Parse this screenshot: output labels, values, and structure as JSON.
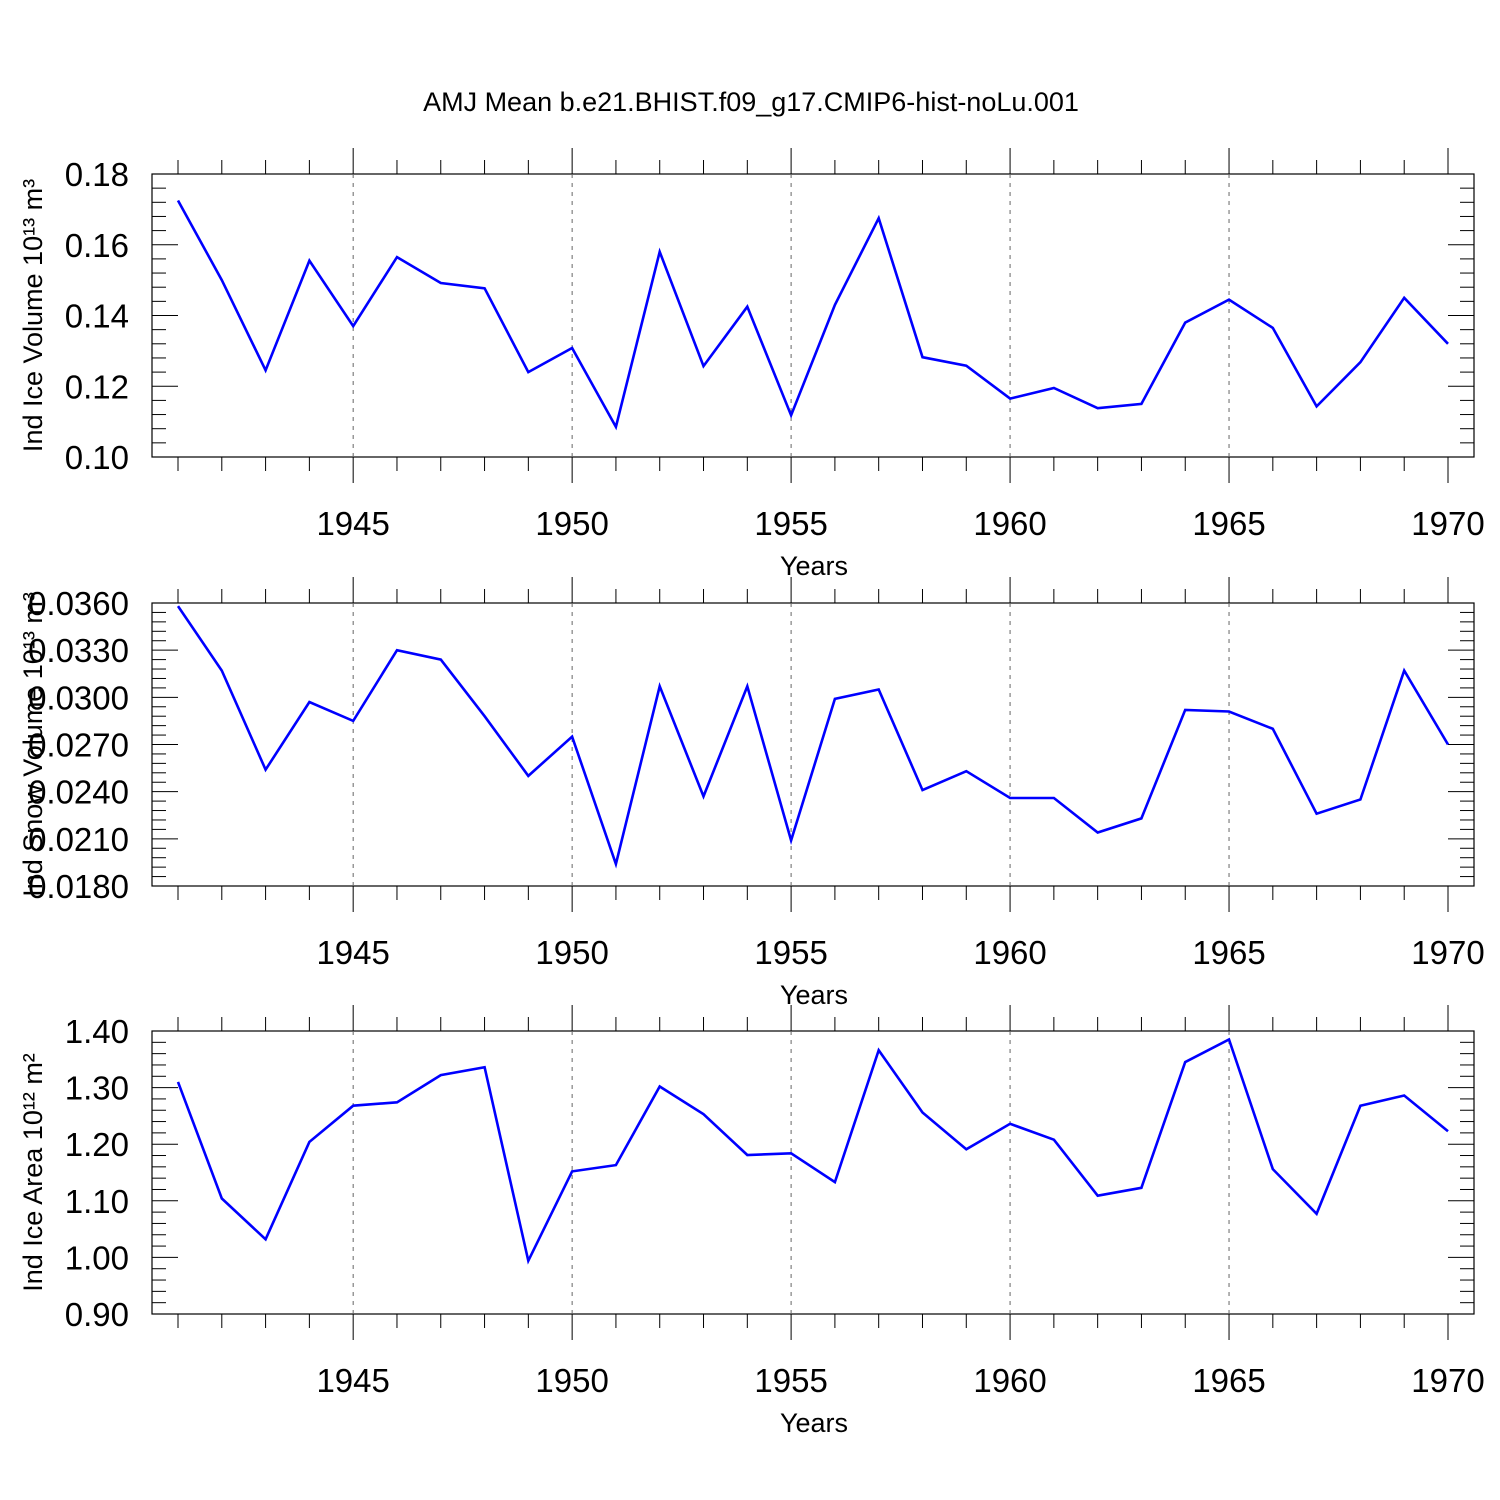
{
  "title": "AMJ Mean b.e21.BHIST.f09_g17.CMIP6-hist-noLu.001",
  "chart_data": [
    {
      "type": "line",
      "id": "ice-volume",
      "xlabel": "Years",
      "ylabel": "Ind Ice Volume",
      "units": "10¹³ m³",
      "xlim": [
        1941,
        1970
      ],
      "ylim": [
        0.1,
        0.18
      ],
      "xticks": [
        1945,
        1950,
        1955,
        1960,
        1965,
        1970
      ],
      "yticks": [
        "0.10",
        "0.12",
        "0.14",
        "0.16",
        "0.18"
      ],
      "x": [
        1941,
        1942,
        1943,
        1944,
        1945,
        1946,
        1947,
        1948,
        1949,
        1950,
        1951,
        1952,
        1953,
        1954,
        1955,
        1956,
        1957,
        1958,
        1959,
        1960,
        1961,
        1962,
        1963,
        1964,
        1965,
        1966,
        1967,
        1968,
        1969,
        1970
      ],
      "values": [
        0.1725,
        0.15,
        0.1245,
        0.1555,
        0.137,
        0.1565,
        0.1492,
        0.1477,
        0.124,
        0.1308,
        0.1085,
        0.158,
        0.1257,
        0.1425,
        0.1118,
        0.143,
        0.1675,
        0.1282,
        0.1258,
        0.1165,
        0.1195,
        0.1138,
        0.115,
        0.138,
        0.1445,
        0.1365,
        0.1143,
        0.1268,
        0.145,
        0.132
      ],
      "color": "#0000ff"
    },
    {
      "type": "line",
      "id": "snow-volume",
      "xlabel": "Years",
      "ylabel": "Ind Snow Volume",
      "units": "10¹³ m³",
      "xlim": [
        1941,
        1970
      ],
      "ylim": [
        0.018,
        0.036
      ],
      "xticks": [
        1945,
        1950,
        1955,
        1960,
        1965,
        1970
      ],
      "yticks": [
        "0.0180",
        "0.0210",
        "0.0240",
        "0.0270",
        "0.0300",
        "0.0330",
        "0.0360"
      ],
      "x": [
        1941,
        1942,
        1943,
        1944,
        1945,
        1946,
        1947,
        1948,
        1949,
        1950,
        1951,
        1952,
        1953,
        1954,
        1955,
        1956,
        1957,
        1958,
        1959,
        1960,
        1961,
        1962,
        1963,
        1964,
        1965,
        1966,
        1967,
        1968,
        1969,
        1970
      ],
      "values": [
        0.0358,
        0.0317,
        0.0254,
        0.0297,
        0.0285,
        0.033,
        0.0324,
        0.0288,
        0.025,
        0.0275,
        0.0194,
        0.0307,
        0.0237,
        0.0307,
        0.0209,
        0.0299,
        0.0305,
        0.0241,
        0.0253,
        0.0236,
        0.0236,
        0.0214,
        0.0223,
        0.0292,
        0.0291,
        0.028,
        0.0226,
        0.0235,
        0.0317,
        0.027
      ],
      "color": "#0000ff"
    },
    {
      "type": "line",
      "id": "ice-area",
      "xlabel": "Years",
      "ylabel": "Ind Ice Area",
      "units": "10¹² m²",
      "xlim": [
        1941,
        1970
      ],
      "ylim": [
        0.9,
        1.4
      ],
      "xticks": [
        1945,
        1950,
        1955,
        1960,
        1965,
        1970
      ],
      "yticks": [
        "0.90",
        "1.00",
        "1.10",
        "1.20",
        "1.30",
        "1.40"
      ],
      "x": [
        1941,
        1942,
        1943,
        1944,
        1945,
        1946,
        1947,
        1948,
        1949,
        1950,
        1951,
        1952,
        1953,
        1954,
        1955,
        1956,
        1957,
        1958,
        1959,
        1960,
        1961,
        1962,
        1963,
        1964,
        1965,
        1966,
        1967,
        1968,
        1969,
        1970
      ],
      "values": [
        1.31,
        1.104,
        1.032,
        1.204,
        1.268,
        1.274,
        1.322,
        1.336,
        0.994,
        1.152,
        1.163,
        1.302,
        1.253,
        1.181,
        1.184,
        1.133,
        1.366,
        1.256,
        1.191,
        1.236,
        1.208,
        1.109,
        1.123,
        1.345,
        1.385,
        1.156,
        1.077,
        1.268,
        1.286,
        1.223
      ],
      "color": "#0000ff"
    }
  ]
}
